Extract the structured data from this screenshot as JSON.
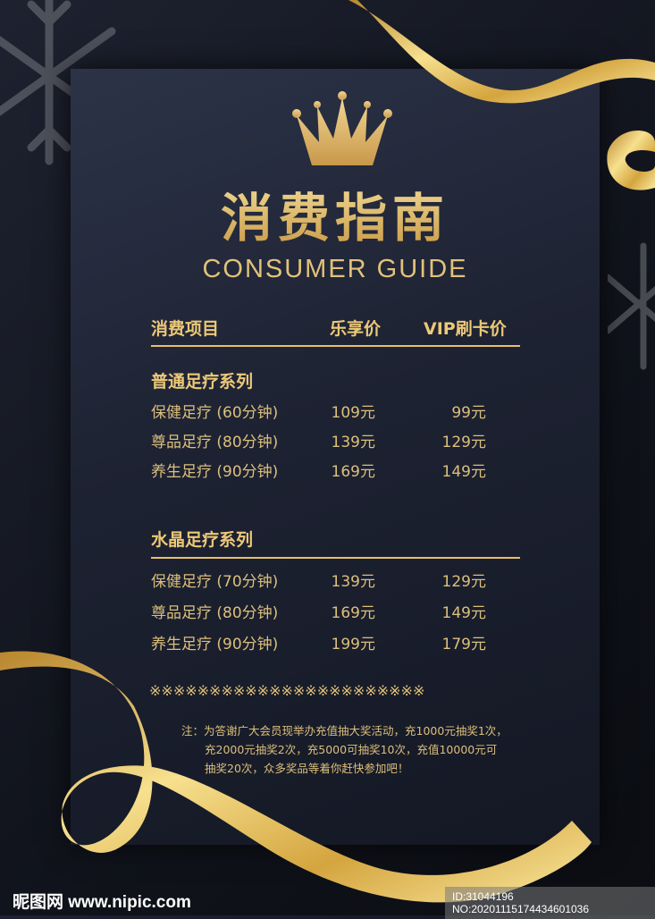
{
  "poster": {
    "title": "消费指南",
    "subtitle": "CONSUMER GUIDE",
    "accent_color": "#e3c378",
    "background_color": "#1d2232",
    "icons": [
      "crown-icon",
      "snowflake-icon",
      "gold-ribbon"
    ]
  },
  "header": {
    "item": "消费项目",
    "price": "乐享价",
    "vip_price": "VIP刷卡价"
  },
  "sections": [
    {
      "name": "普通足疗系列",
      "rows": [
        {
          "item": "保健足疗 (60分钟)",
          "price": "109元",
          "vip": "99元"
        },
        {
          "item": "尊品足疗 (80分钟)",
          "price": "139元",
          "vip": "129元"
        },
        {
          "item": "养生足疗 (90分钟)",
          "price": "169元",
          "vip": "149元"
        }
      ]
    },
    {
      "name": "水晶足疗系列",
      "rows": [
        {
          "item": "保健足疗 (70分钟)",
          "price": "139元",
          "vip": "129元"
        },
        {
          "item": "尊品足疗 (80分钟)",
          "price": "169元",
          "vip": "149元"
        },
        {
          "item": "养生足疗 (90分钟)",
          "price": "199元",
          "vip": "179元"
        }
      ]
    }
  ],
  "divider": "※※※※※※※※※※※※※※※※※※※※※※※",
  "note": {
    "line1": "注：为答谢广大会员现举办充值抽大奖活动，充1000元抽奖1次，",
    "line2": "充2000元抽奖2次，充5000可抽奖10次，充值10000元可",
    "line3": "抽奖20次，众多奖品等着你赶快参加吧！"
  },
  "watermark": {
    "logo": "昵图网 www.nipic.com",
    "id": "ID:31044196 NO:20201115174434601036"
  }
}
